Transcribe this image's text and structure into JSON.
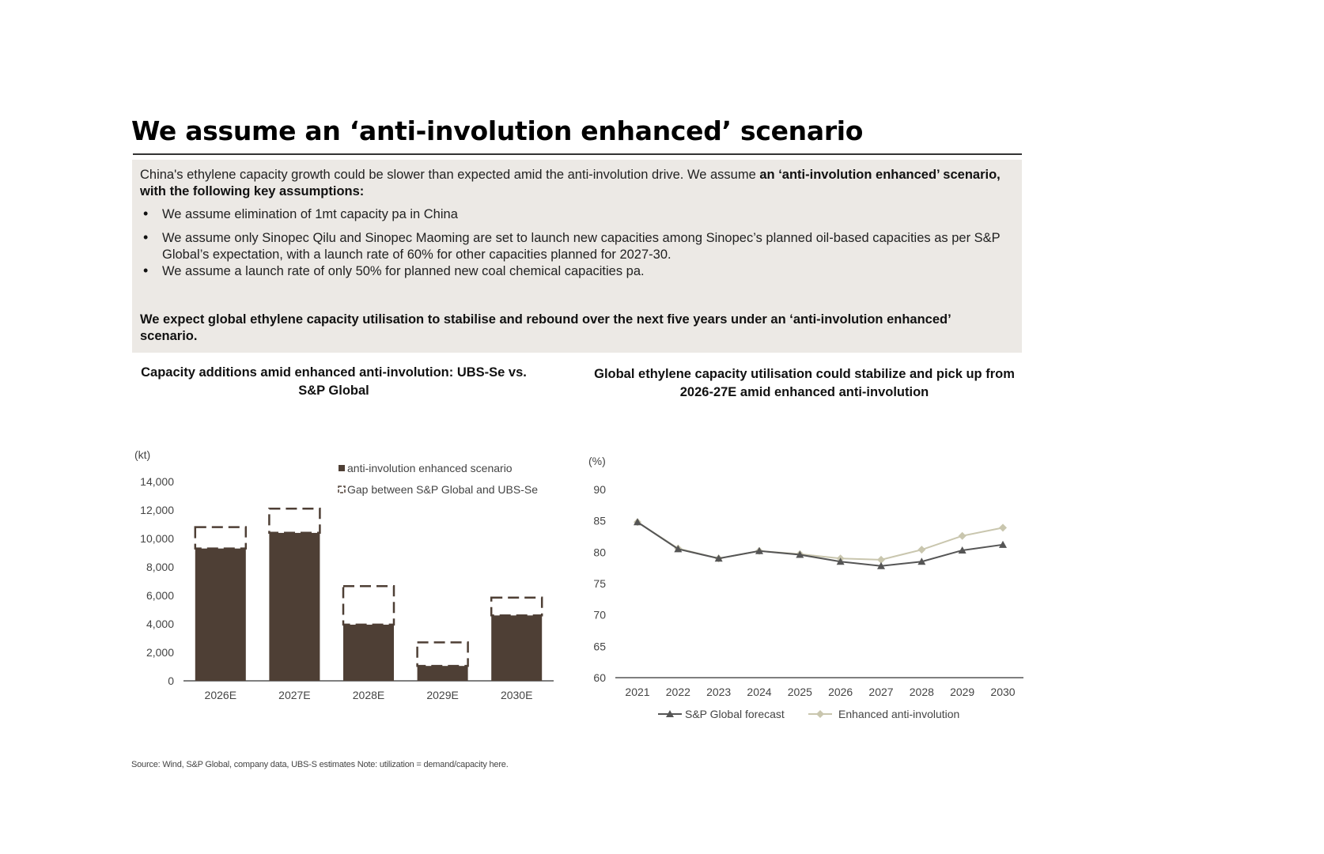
{
  "page": {
    "title": "We assume an ‘anti-involution enhanced’ scenario",
    "intro_plain": "China's ethylene capacity growth could be slower than expected amid the anti-involution drive. We assume ",
    "intro_bold": "an ‘anti-involution enhanced’ scenario, with the following key assumptions:",
    "bullets": [
      "We assume elimination of 1mt capacity pa in China",
      "We assume only Sinopec Qilu and Sinopec Maoming are set to launch new capacities among Sinopec’s planned oil-based capacities as per S&P Global’s expectation, with a launch rate of 60% for other capacities planned for 2027-30.",
      "We assume a launch rate of only 50% for planned new coal chemical capacities pa."
    ],
    "conclusion": "We expect global ethylene capacity utilisation to stabilise and rebound over the next five years under an ‘anti-involution enhanced’ scenario.",
    "source": "Source: Wind, S&P Global, company data, UBS-S estimates Note: utilization = demand/capacity here."
  },
  "chart_data": [
    {
      "type": "bar",
      "title": "Capacity additions amid enhanced anti-involution: UBS-Se vs. S&P Global",
      "ylabel": "(kt)",
      "categories": [
        "2026E",
        "2027E",
        "2028E",
        "2029E",
        "2030E"
      ],
      "ylim": [
        0,
        14000
      ],
      "yticks": [
        0,
        2000,
        4000,
        6000,
        8000,
        10000,
        12000,
        14000
      ],
      "ytick_labels": [
        "0",
        "2,000",
        "4,000",
        "6,000",
        "8,000",
        "10,000",
        "12,000",
        "14,000"
      ],
      "stacked": true,
      "series": [
        {
          "name": "anti-involution enhanced scenario",
          "values": [
            9300,
            10400,
            3950,
            1050,
            4600
          ],
          "color": "#4e3f35",
          "style": "solid"
        },
        {
          "name": "Gap between S&P Global and UBS-Se",
          "values": [
            1500,
            1700,
            2700,
            1650,
            1250
          ],
          "color": "#ffffff",
          "style": "dashed"
        }
      ],
      "legend": "top-right",
      "grid": false
    },
    {
      "type": "line",
      "title": "Global ethylene capacity utilisation could stabilize and pick up from 2026-27E amid enhanced anti-involution",
      "ylabel": "(%)",
      "x": [
        "2021",
        "2022",
        "2023",
        "2024",
        "2025",
        "2026",
        "2027",
        "2028",
        "2029",
        "2030"
      ],
      "ylim": [
        60,
        90
      ],
      "yticks": [
        60,
        65,
        70,
        75,
        80,
        85,
        90
      ],
      "series": [
        {
          "name": "S&P Global forecast",
          "values": [
            84.8,
            80.5,
            79.0,
            80.2,
            79.6,
            78.5,
            77.8,
            78.5,
            80.3,
            81.2
          ],
          "color": "#555555",
          "marker": "triangle"
        },
        {
          "name": "Enhanced anti-involution",
          "values": [
            84.8,
            80.6,
            79.0,
            80.2,
            79.7,
            79.0,
            78.8,
            80.4,
            82.6,
            83.9
          ],
          "color": "#c9c6ae",
          "marker": "diamond"
        }
      ],
      "legend": "bottom",
      "grid": false
    }
  ]
}
